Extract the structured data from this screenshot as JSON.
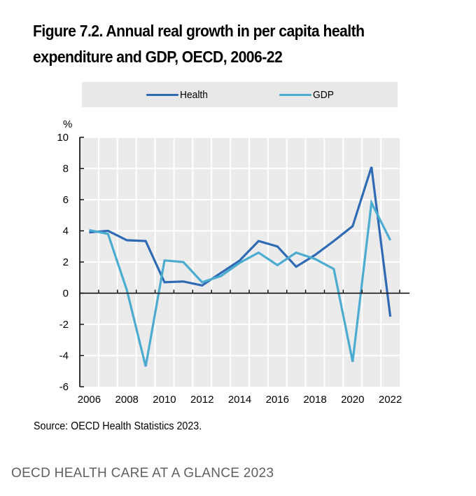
{
  "figure": {
    "title_line1": "Figure 7.2. Annual real growth in per capita health",
    "title_line2": "expenditure and GDP, OECD, 2006-22",
    "source": "Source: OECD Health Statistics 2023.",
    "footer": "OECD HEALTH CARE AT A GLANCE 2023"
  },
  "legend": {
    "items": [
      {
        "label": "Health",
        "color": "#2f6ab5"
      },
      {
        "label": "GDP",
        "color": "#4bacd0"
      }
    ]
  },
  "chart_data": {
    "type": "line",
    "title": "Figure 7.2. Annual real growth in per capita health expenditure and GDP, OECD, 2006-22",
    "xlabel": "",
    "ylabel": "%",
    "ylim": [
      -6,
      10
    ],
    "yticks": [
      -6,
      -4,
      -2,
      0,
      2,
      4,
      6,
      8,
      10
    ],
    "x": [
      2006,
      2007,
      2008,
      2009,
      2010,
      2011,
      2012,
      2013,
      2014,
      2015,
      2016,
      2017,
      2018,
      2019,
      2020,
      2021,
      2022
    ],
    "xtick_labels": [
      "2006",
      "2008",
      "2010",
      "2012",
      "2014",
      "2016",
      "2018",
      "2020",
      "2022"
    ],
    "grid": true,
    "legend_position": "top",
    "series": [
      {
        "name": "Health",
        "color": "#2f6ab5",
        "values": [
          3.9,
          4.0,
          3.4,
          3.35,
          0.7,
          0.75,
          0.5,
          1.3,
          2.1,
          3.35,
          3.0,
          1.7,
          2.45,
          3.35,
          4.3,
          8.1,
          -1.5
        ]
      },
      {
        "name": "GDP",
        "color": "#4bacd0",
        "values": [
          4.05,
          3.8,
          0.2,
          -4.7,
          2.1,
          2.0,
          0.7,
          1.1,
          1.95,
          2.6,
          1.8,
          2.6,
          2.2,
          1.55,
          -4.4,
          5.8,
          3.4
        ]
      }
    ]
  }
}
